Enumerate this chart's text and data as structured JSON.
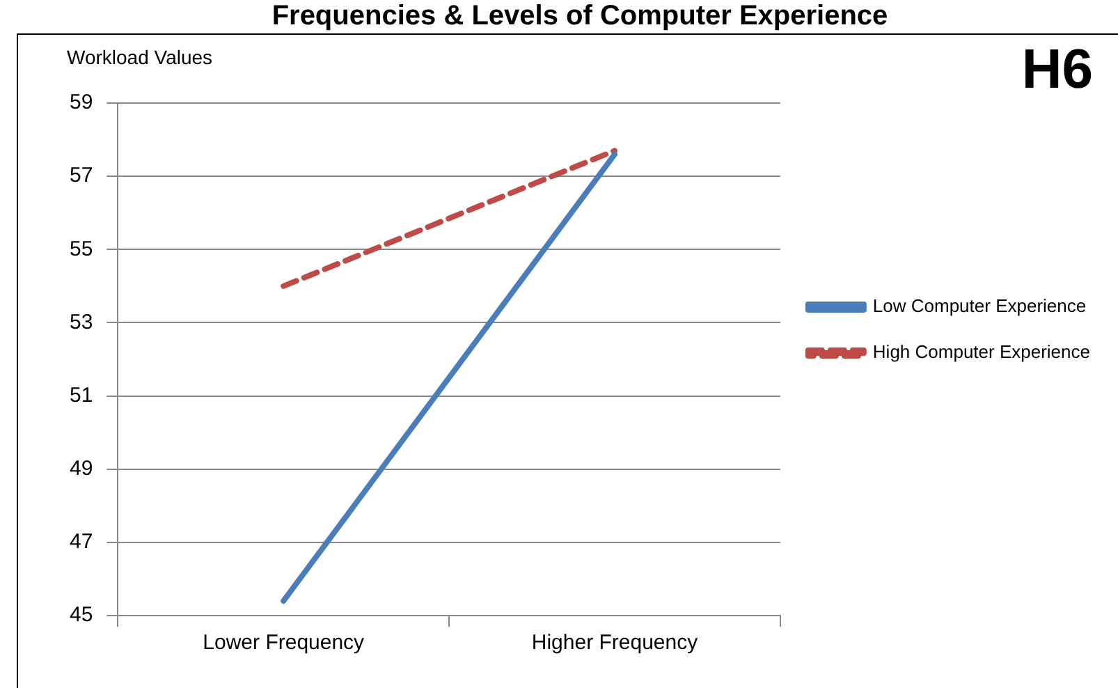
{
  "chart_data": {
    "type": "line",
    "title": "Frequencies & Levels of Computer Experience",
    "ylabel": "Workload Values",
    "annotations": [
      "H6"
    ],
    "categories": [
      "Lower Frequency",
      "Higher Frequency"
    ],
    "series": [
      {
        "name": "Low Computer Experience",
        "color": "#4a7ebb",
        "values": [
          45.4,
          57.6
        ],
        "line_style": "solid"
      },
      {
        "name": "High Computer Experience",
        "color": "#be4b48",
        "values": [
          54.0,
          57.7
        ],
        "line_style": "dashed"
      }
    ],
    "ylim": [
      45,
      59
    ],
    "yticks": [
      45,
      47,
      49,
      51,
      53,
      55,
      57,
      59
    ],
    "grid": "y",
    "legend": "right",
    "marker": "none"
  }
}
